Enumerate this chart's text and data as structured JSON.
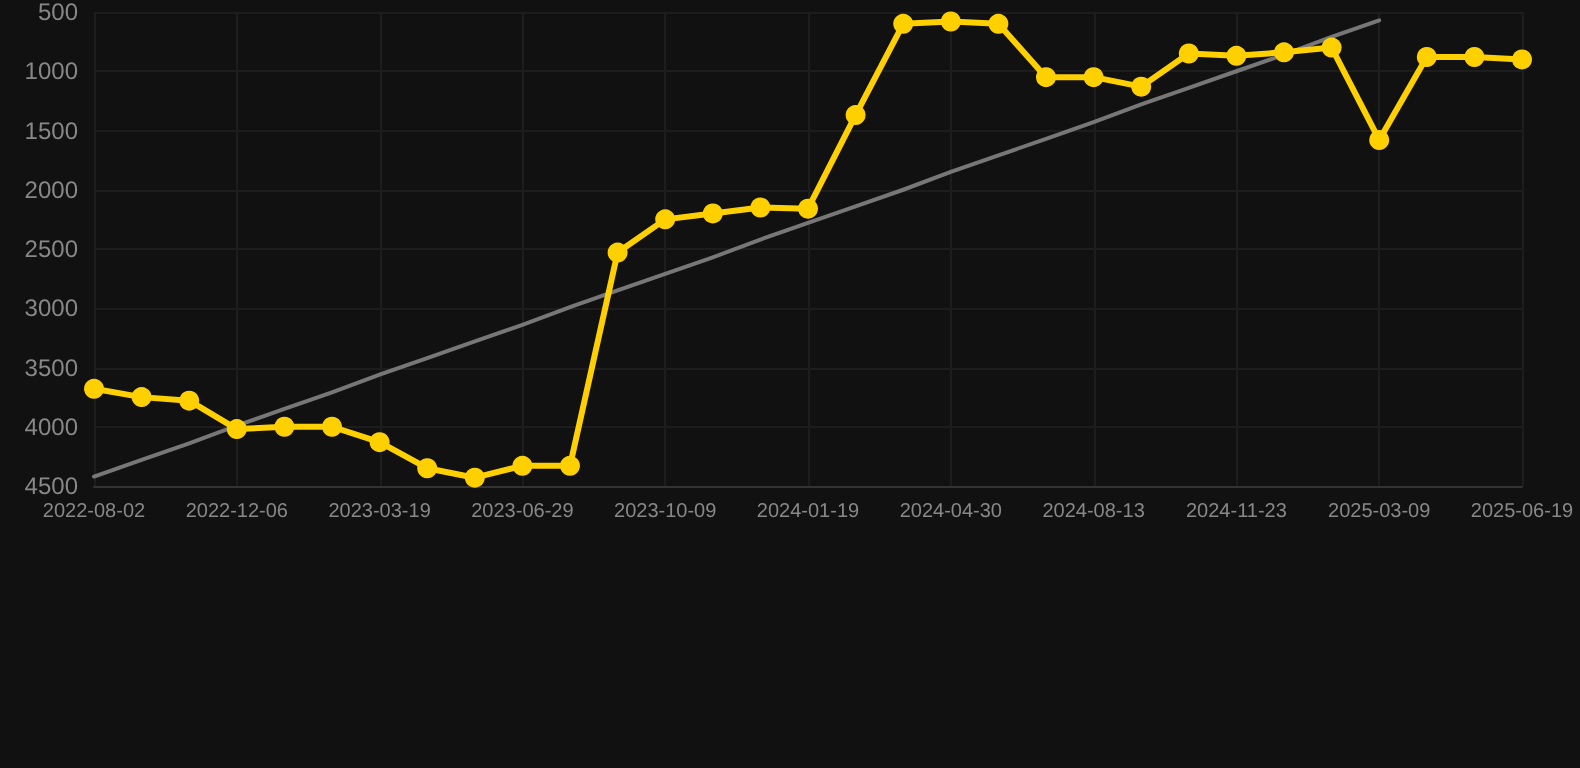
{
  "chart_data": {
    "type": "line",
    "categories": [
      "2022-08-02",
      null,
      null,
      "2022-12-06",
      null,
      null,
      "2023-03-19",
      null,
      null,
      "2023-06-29",
      null,
      null,
      "2023-10-09",
      null,
      null,
      "2024-01-19",
      null,
      null,
      "2024-04-30",
      null,
      null,
      "2024-08-13",
      null,
      null,
      "2024-11-23",
      null,
      null,
      "2025-03-09",
      null,
      null,
      "2025-06-19"
    ],
    "series": [
      {
        "color": "#ffd000",
        "marker": "circle",
        "values": [
          3680,
          3750,
          3780,
          4020,
          4000,
          4000,
          4130,
          4350,
          4430,
          4330,
          4330,
          2530,
          2250,
          2200,
          2150,
          2160,
          1370,
          600,
          580,
          600,
          1050,
          1050,
          1130,
          850,
          870,
          840,
          800,
          1580,
          880,
          880,
          900
        ]
      },
      {
        "color": "#777777",
        "marker": "none",
        "values": [
          4420,
          4280,
          4140,
          3990,
          3850,
          3710,
          3560,
          3420,
          3280,
          3140,
          2990,
          2850,
          2710,
          2570,
          2420,
          2280,
          2140,
          2000,
          1850,
          1710,
          1570,
          1430,
          1280,
          1140,
          1000,
          860,
          710,
          570,
          null,
          null,
          null
        ]
      }
    ],
    "ylim": [
      4500,
      500
    ],
    "yticks": [
      500,
      1000,
      1500,
      2000,
      2500,
      3000,
      3500,
      4000,
      4500
    ],
    "grid": true
  }
}
